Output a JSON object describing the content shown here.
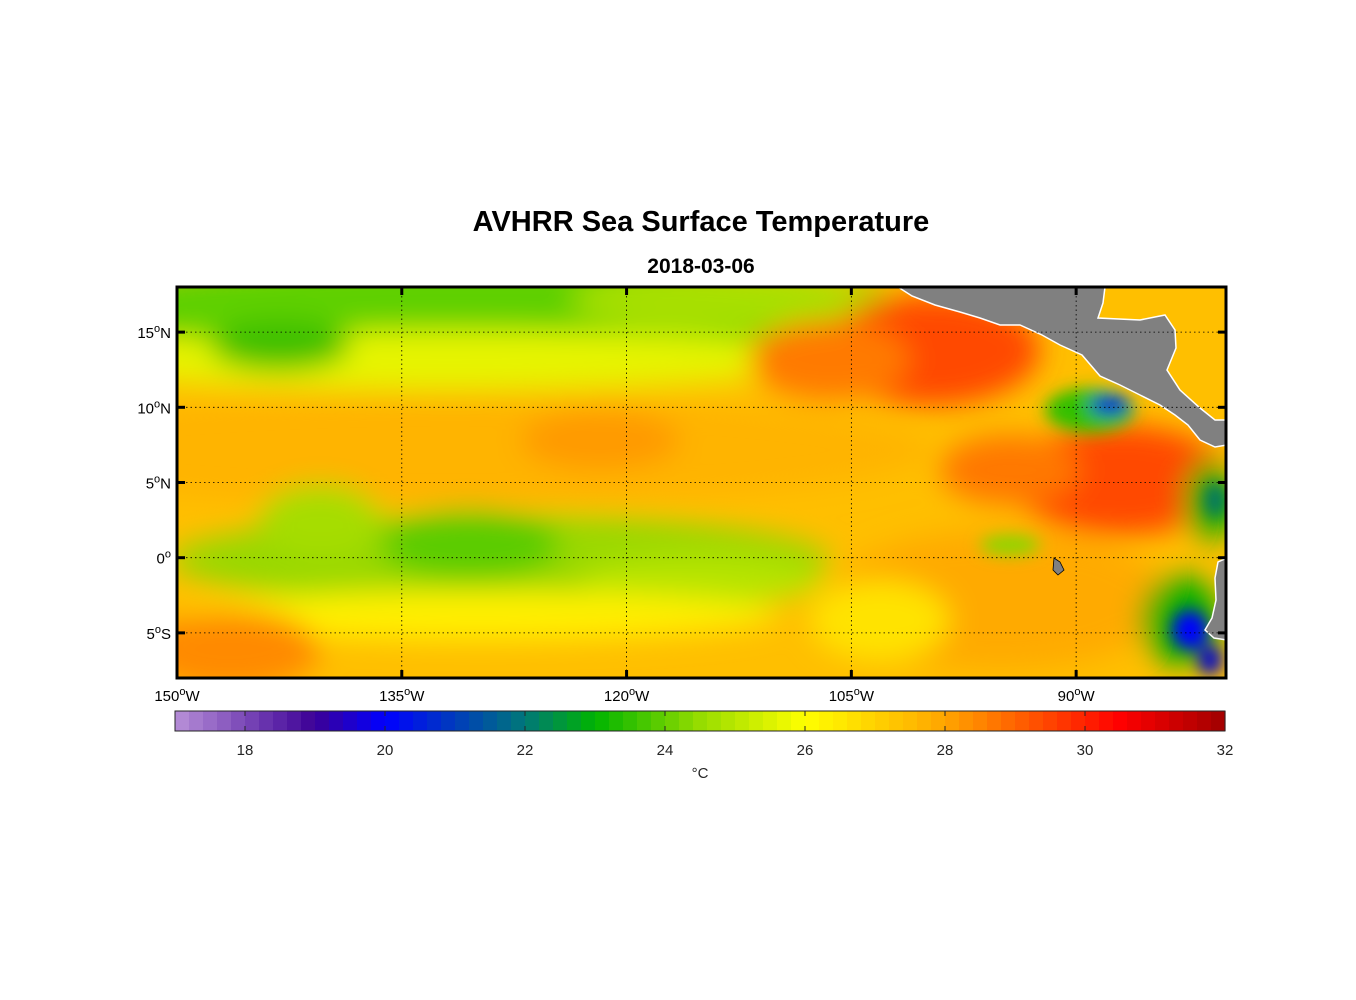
{
  "map": {
    "title": "AVHRR Sea Surface Temperature",
    "date": "2018-03-06",
    "lon_range": [
      -150,
      -80
    ],
    "lat_range": [
      -8,
      18
    ],
    "lon_ticks": [
      {
        "value": -150,
        "deg": "150",
        "hem": "W"
      },
      {
        "value": -135,
        "deg": "135",
        "hem": "W"
      },
      {
        "value": -120,
        "deg": "120",
        "hem": "W"
      },
      {
        "value": -105,
        "deg": "105",
        "hem": "W"
      },
      {
        "value": -90,
        "deg": "90",
        "hem": "W"
      }
    ],
    "lat_ticks": [
      {
        "value": 15,
        "deg": "15",
        "hem": "N"
      },
      {
        "value": 10,
        "deg": "10",
        "hem": "N"
      },
      {
        "value": 5,
        "deg": "5",
        "hem": "N"
      },
      {
        "value": 0,
        "deg": "0",
        "hem": ""
      },
      {
        "value": -5,
        "deg": "5",
        "hem": "S"
      }
    ],
    "land_color": "#808080"
  },
  "colorbar": {
    "min": 17,
    "max": 32,
    "ticks": [
      "18",
      "20",
      "22",
      "24",
      "26",
      "28",
      "30",
      "32"
    ],
    "unit": "°C",
    "stops": [
      {
        "t": 17,
        "color": "#b890d8"
      },
      {
        "t": 19,
        "color": "#3c0096"
      },
      {
        "t": 20,
        "color": "#0000ff"
      },
      {
        "t": 22,
        "color": "#007878"
      },
      {
        "t": 23,
        "color": "#00b400"
      },
      {
        "t": 24.5,
        "color": "#96dc00"
      },
      {
        "t": 26,
        "color": "#ffff00"
      },
      {
        "t": 27,
        "color": "#ffd200"
      },
      {
        "t": 28,
        "color": "#ffa500"
      },
      {
        "t": 29,
        "color": "#ff6400"
      },
      {
        "t": 30.5,
        "color": "#ff0000"
      },
      {
        "t": 32,
        "color": "#a00000"
      }
    ]
  }
}
